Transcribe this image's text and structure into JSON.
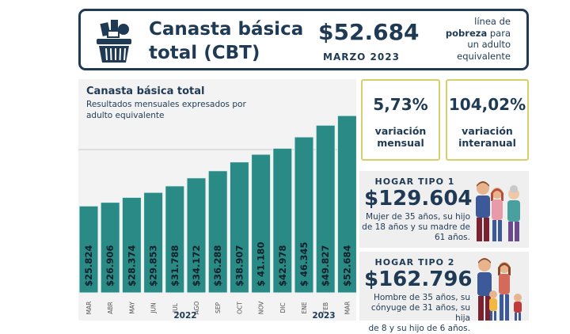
{
  "header": {
    "title_line1": "Canasta básica",
    "title_line2": "total (CBT)",
    "value": "$52.684",
    "date": "MARZO 2023",
    "note_line1": "línea de",
    "note_bold": "pobreza",
    "note_after_bold": " para",
    "note_line3": "un adulto",
    "note_line4": "equivalente"
  },
  "chart_card": {
    "title": "Canasta básica total",
    "subtitle": "Resultados mensuales expresados por adulto equivalente"
  },
  "chart_data": {
    "type": "bar",
    "title": "Canasta básica total",
    "subtitle": "Resultados mensuales expresados por adulto equivalente",
    "categories": [
      "MAR",
      "ABR",
      "MAY",
      "JUN",
      "JUL",
      "AGO",
      "SEP",
      "OCT",
      "NOV",
      "DIC",
      "ENE",
      "FEB",
      "MAR"
    ],
    "values": [
      25824,
      26906,
      28374,
      29853,
      31788,
      34172,
      36288,
      38907,
      41180,
      42978,
      46345,
      49827,
      52684
    ],
    "value_labels": [
      "$25.824",
      "$26.906",
      "$28.374",
      "$29.853",
      "$31.788",
      "$34.172",
      "$36.288",
      "$38.907",
      "$ 41.180",
      "$42.978",
      "$ 46.345",
      "$49.827",
      "$52.684"
    ],
    "groups": [
      {
        "label": "2022",
        "categories": [
          "MAR",
          "ABR",
          "MAY",
          "JUN",
          "JUL",
          "AGO",
          "SEP",
          "OCT",
          "NOV",
          "DIC"
        ]
      },
      {
        "label": "2023",
        "categories": [
          "ENE",
          "FEB",
          "MAR"
        ]
      }
    ],
    "ylim": [
      0,
      56000
    ],
    "grid": false,
    "colors": {
      "bar": "#2a8a86",
      "bar_edge": "#e6f2f1",
      "label": "#11202a"
    }
  },
  "stats": {
    "monthly": {
      "value": "5,73%",
      "label_line1": "variación",
      "label_line2": "mensual"
    },
    "annual": {
      "value": "104,02%",
      "label_line1": "variación",
      "label_line2": "interanual"
    }
  },
  "hogares": [
    {
      "title": "HOGAR TIPO 1",
      "value": "$129.604",
      "desc_lines": [
        "Mujer de 35 años, su hijo",
        "de 18 años y su madre de",
        "61 años."
      ]
    },
    {
      "title": "HOGAR TIPO 2",
      "value": "$162.796",
      "desc_lines": [
        "Hombre de 35 años, su",
        "cónyuge de 31 años, su hija",
        "de 8 y su hijo de 6 años."
      ]
    }
  ],
  "colors": {
    "navy": "#1f3a55",
    "teal": "#2a8a86",
    "gold_border": "#d8cf6b",
    "panel_gray": "#efefef"
  }
}
